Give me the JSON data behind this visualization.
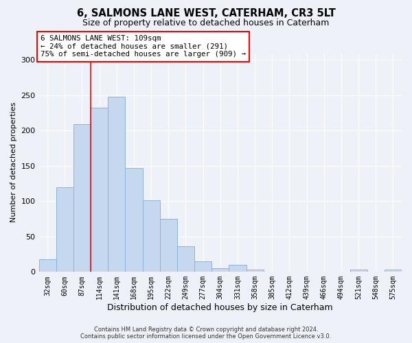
{
  "title": "6, SALMONS LANE WEST, CATERHAM, CR3 5LT",
  "subtitle": "Size of property relative to detached houses in Caterham",
  "xlabel": "Distribution of detached houses by size in Caterham",
  "ylabel": "Number of detached properties",
  "categories": [
    "32sqm",
    "60sqm",
    "87sqm",
    "114sqm",
    "141sqm",
    "168sqm",
    "195sqm",
    "222sqm",
    "249sqm",
    "277sqm",
    "304sqm",
    "331sqm",
    "358sqm",
    "385sqm",
    "412sqm",
    "439sqm",
    "466sqm",
    "494sqm",
    "521sqm",
    "548sqm",
    "575sqm"
  ],
  "values": [
    18,
    120,
    209,
    232,
    248,
    147,
    101,
    75,
    36,
    15,
    5,
    10,
    3,
    0,
    0,
    0,
    0,
    0,
    3,
    0,
    3
  ],
  "bar_color": "#c5d8f0",
  "bar_edge_color": "#8ab4d8",
  "annotation_text": "6 SALMONS LANE WEST: 109sqm\n← 24% of detached houses are smaller (291)\n75% of semi-detached houses are larger (909) →",
  "annotation_box_color": "white",
  "annotation_box_edge_color": "red",
  "footer_line1": "Contains HM Land Registry data © Crown copyright and database right 2024.",
  "footer_line2": "Contains public sector information licensed under the Open Government Licence v3.0.",
  "background_color": "#eef2f8",
  "grid_color": "white",
  "ylim": [
    0,
    310
  ],
  "title_fontsize": 10.5,
  "subtitle_fontsize": 9
}
